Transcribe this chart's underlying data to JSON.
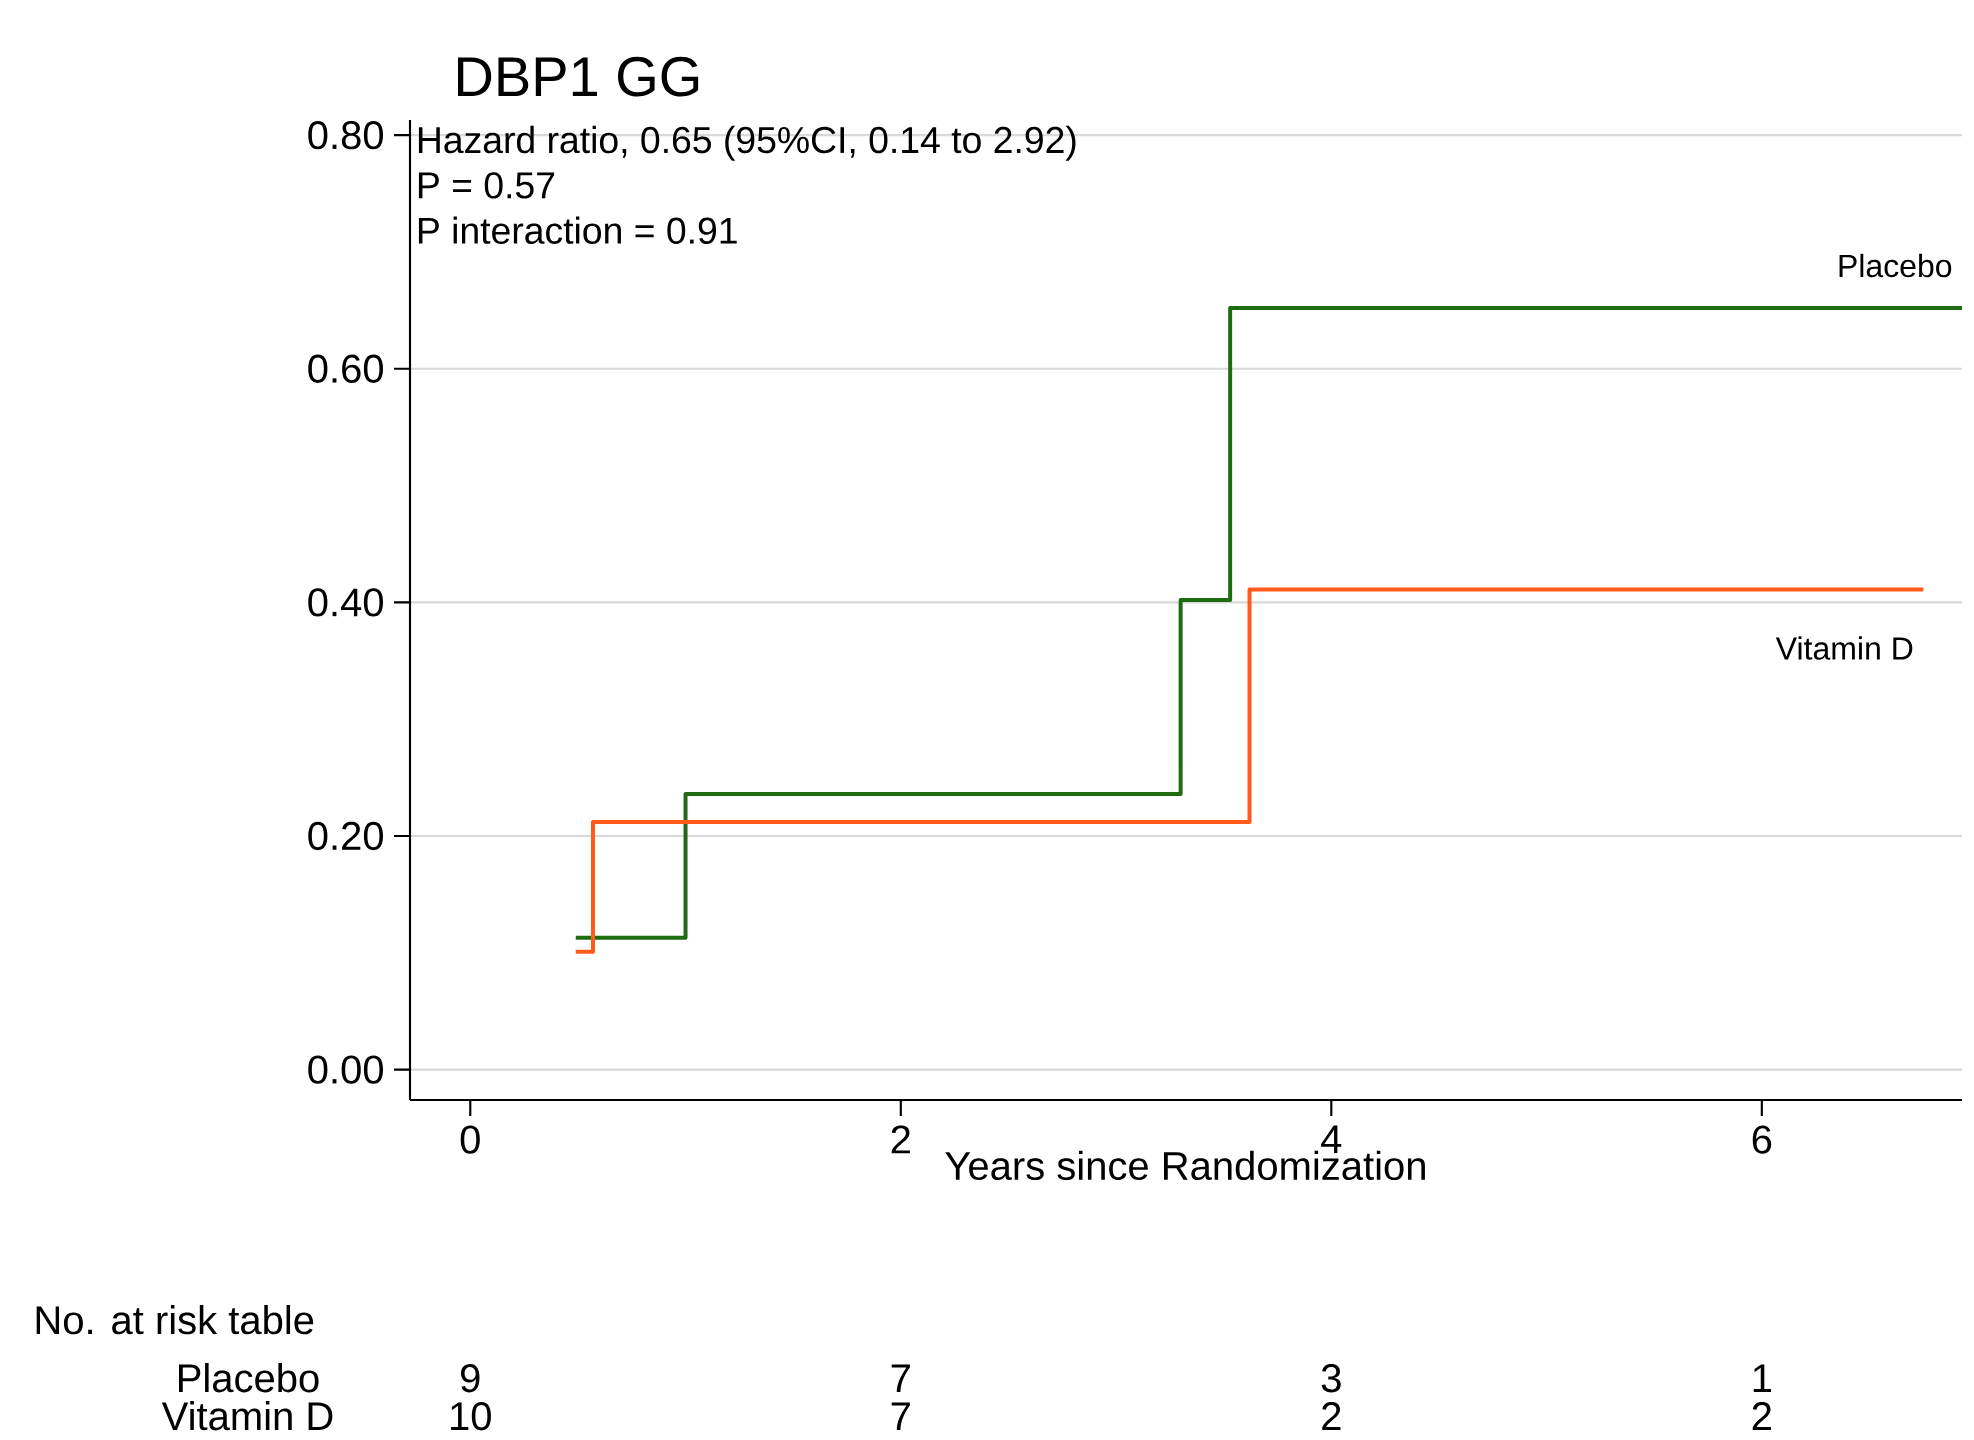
{
  "chart_data": {
    "type": "step",
    "title": "DBP1 GG",
    "xlabel": "Years since Randomization",
    "xlim": [
      -0.28,
      6.93
    ],
    "ylim": [
      -0.026,
      0.813
    ],
    "xticks": [
      0,
      2,
      4,
      6
    ],
    "yticks": [
      {
        "value": 0,
        "label": "0.00"
      },
      {
        "value": 0.2,
        "label": "0.20"
      },
      {
        "value": 0.4,
        "label": "0.40"
      },
      {
        "value": 0.6,
        "label": "0.60"
      },
      {
        "value": 0.8,
        "label": "0.80"
      }
    ],
    "grid": "y",
    "series": [
      {
        "name": "Placebo",
        "color": "#1f6b12",
        "x": [
          0.49,
          1.0,
          3.3,
          3.53,
          6.93
        ],
        "values": [
          0.113,
          0.236,
          0.402,
          0.652,
          0.652
        ]
      },
      {
        "name": "Vitamin D",
        "color": "#ff5a1a",
        "x": [
          0.49,
          0.57,
          3.62,
          6.75
        ],
        "values": [
          0.101,
          0.212,
          0.411,
          0.411
        ]
      }
    ],
    "annotations": [
      "Hazard ratio, 0.65 (95%CI, 0.14 to 2.92)",
      "P = 0.57",
      "P interaction = 0.91",
      "No. at risk table",
      "Placebo",
      "9",
      "7",
      "3",
      "1",
      "Vitamin D",
      "10",
      "7",
      "2",
      "2"
    ]
  }
}
